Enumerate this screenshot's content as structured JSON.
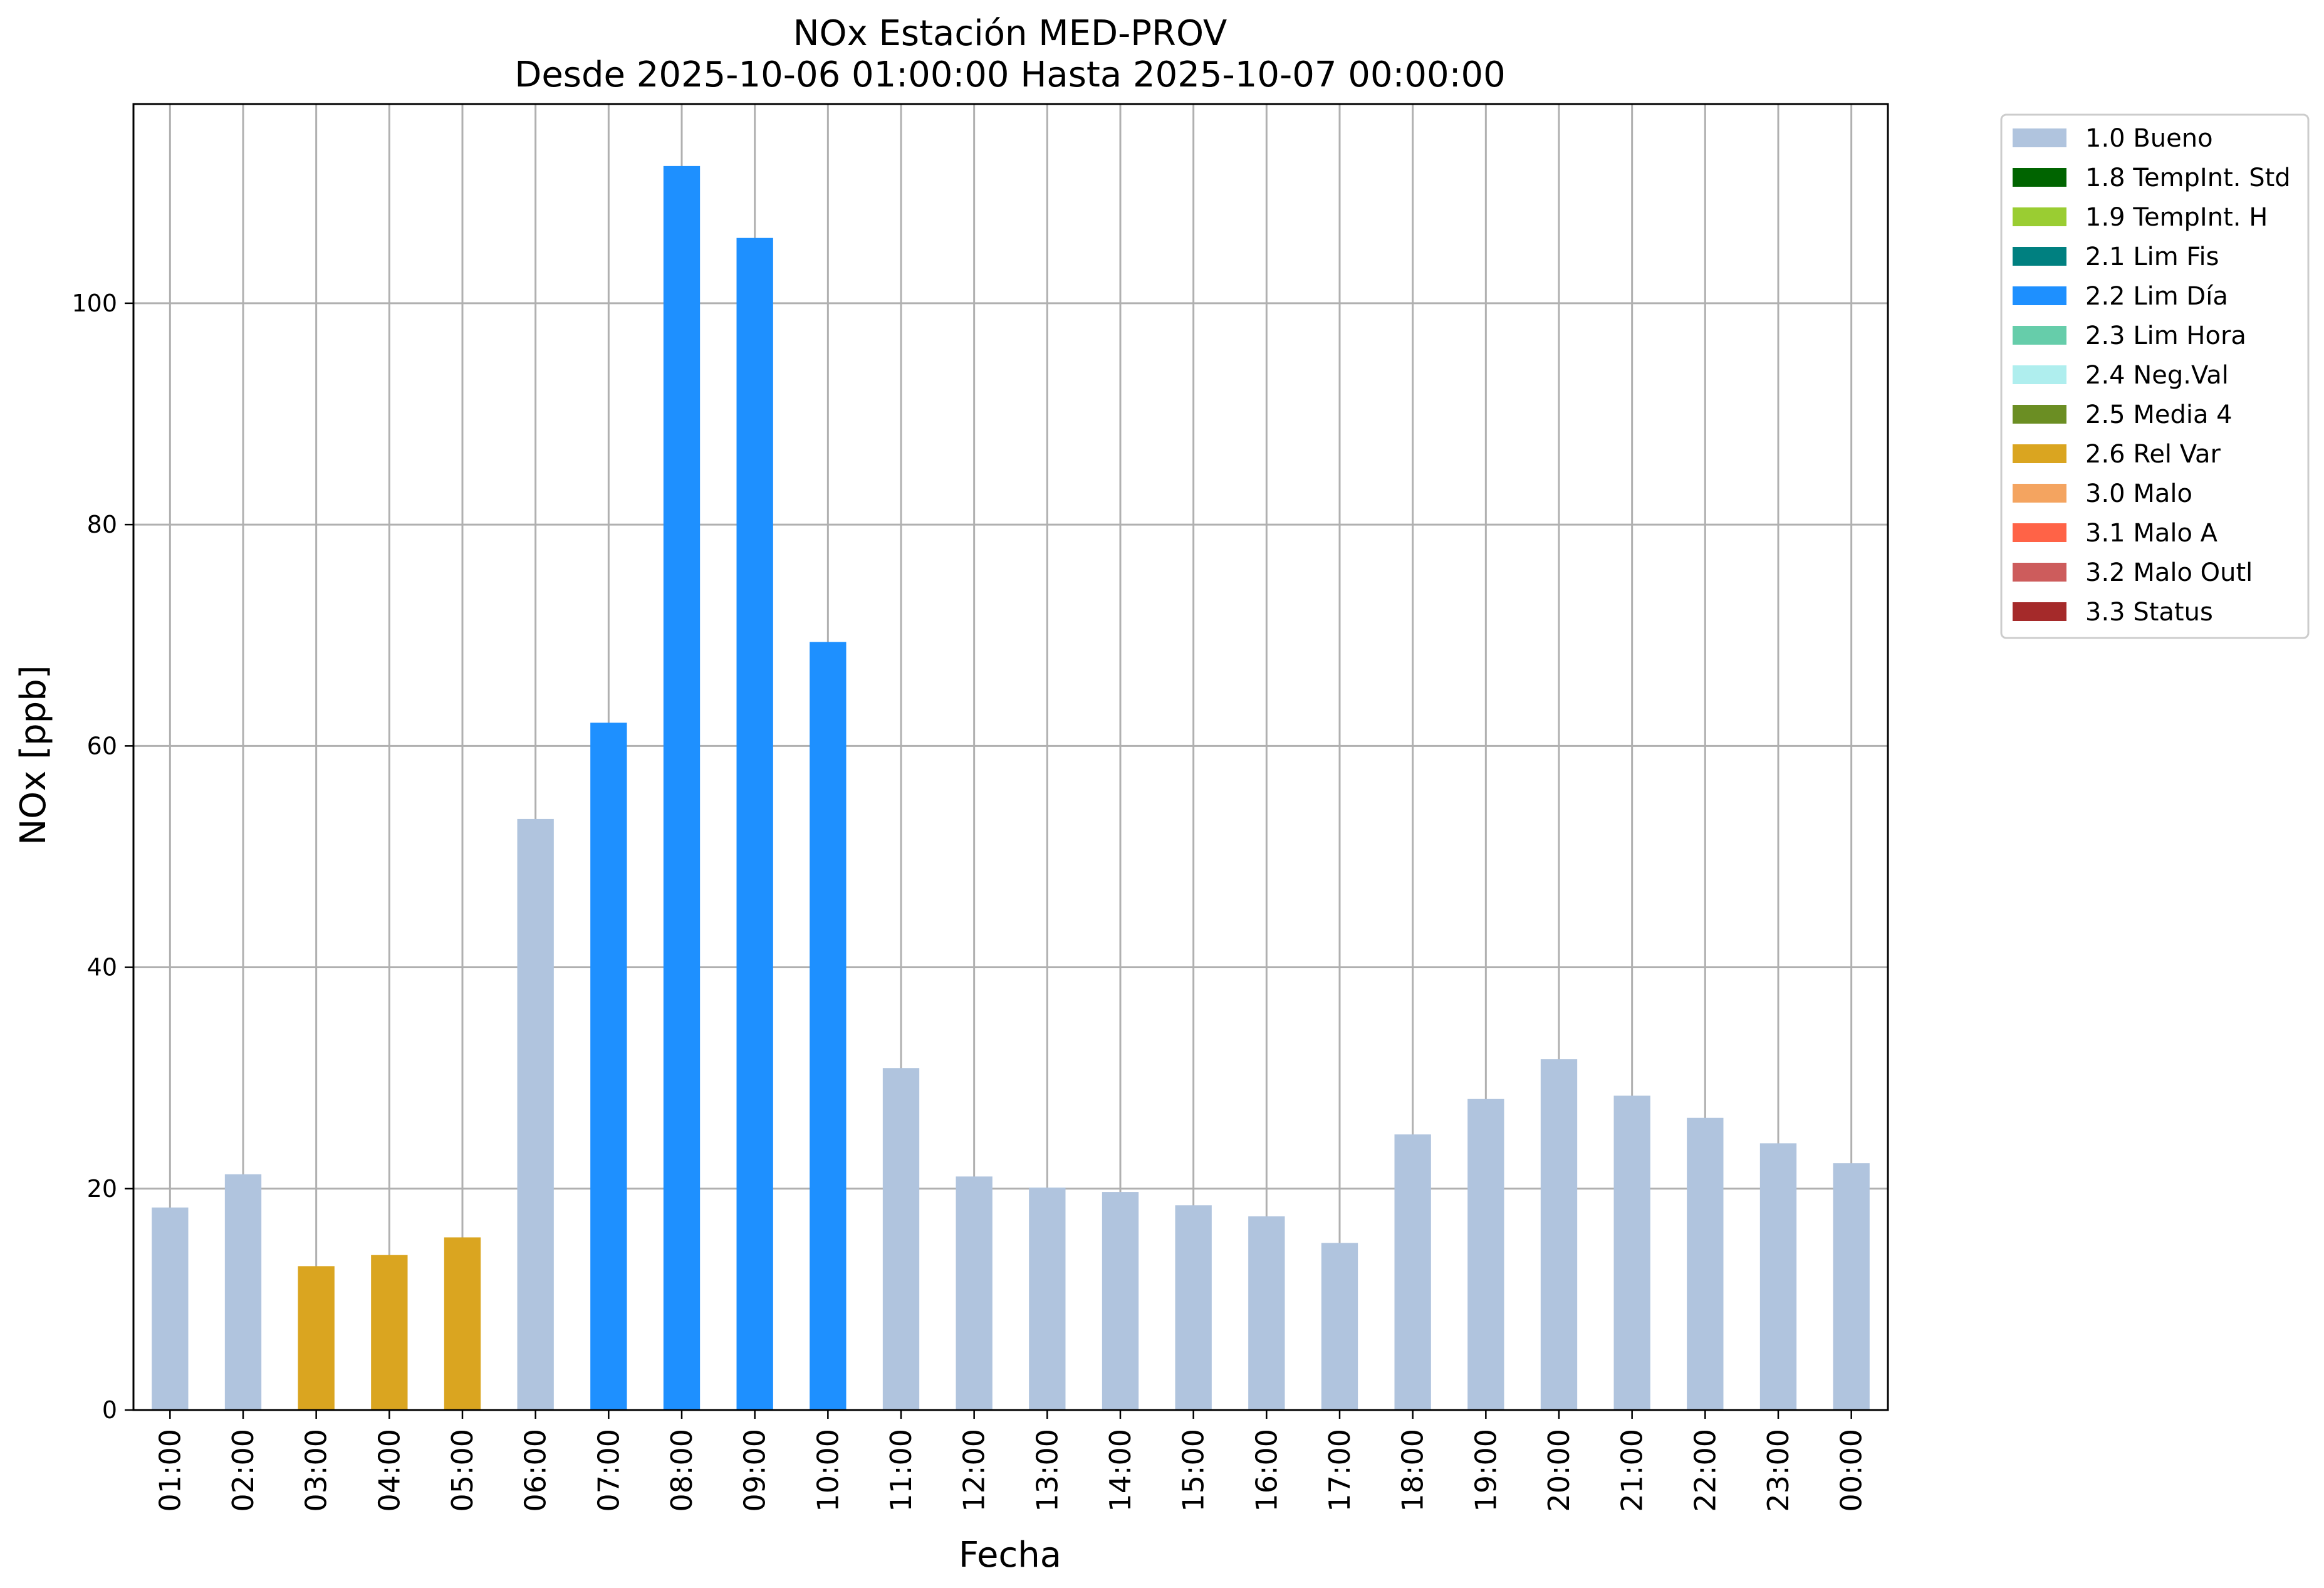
{
  "chart_data": {
    "type": "bar",
    "title": "NOx Estación MED-PROV",
    "subtitle": "Desde 2025-10-06 01:00:00 Hasta 2025-10-07 00:00:00",
    "xlabel": "Fecha",
    "ylabel": "NOx [ppb]",
    "ylim": [
      0,
      118
    ],
    "yticks": [
      0,
      20,
      40,
      60,
      80,
      100
    ],
    "grid": true,
    "legend_position": "outside-top-right",
    "categories": [
      "01:00",
      "02:00",
      "03:00",
      "04:00",
      "05:00",
      "06:00",
      "07:00",
      "08:00",
      "09:00",
      "10:00",
      "11:00",
      "12:00",
      "13:00",
      "14:00",
      "15:00",
      "16:00",
      "17:00",
      "18:00",
      "19:00",
      "20:00",
      "21:00",
      "22:00",
      "23:00",
      "00:00"
    ],
    "values": [
      18.3,
      21.3,
      13.0,
      14.0,
      15.6,
      53.4,
      62.1,
      112.4,
      105.9,
      69.4,
      30.9,
      21.1,
      20.1,
      19.7,
      18.5,
      17.5,
      15.1,
      24.9,
      28.1,
      31.7,
      28.4,
      26.4,
      24.1,
      22.3
    ],
    "flags": [
      "1.0 Bueno",
      "1.0 Bueno",
      "2.6 Rel Var",
      "2.6 Rel Var",
      "2.6 Rel Var",
      "1.0 Bueno",
      "2.2 Lim Día",
      "2.2 Lim Día",
      "2.2 Lim Día",
      "2.2 Lim Día",
      "1.0 Bueno",
      "1.0 Bueno",
      "1.0 Bueno",
      "1.0 Bueno",
      "1.0 Bueno",
      "1.0 Bueno",
      "1.0 Bueno",
      "1.0 Bueno",
      "1.0 Bueno",
      "1.0 Bueno",
      "1.0 Bueno",
      "1.0 Bueno",
      "1.0 Bueno",
      "1.0 Bueno"
    ],
    "legend": [
      {
        "label": "1.0 Bueno",
        "color": "#b0c4de"
      },
      {
        "label": "1.8 TempInt. Std",
        "color": "#006400"
      },
      {
        "label": "1.9 TempInt. H",
        "color": "#9acd32"
      },
      {
        "label": "2.1 Lim Fis",
        "color": "#008080"
      },
      {
        "label": "2.2 Lim Día",
        "color": "#1e90ff"
      },
      {
        "label": "2.3 Lim Hora",
        "color": "#66cdaa"
      },
      {
        "label": "2.4 Neg.Val",
        "color": "#afeeee"
      },
      {
        "label": "2.5 Media 4",
        "color": "#6b8e23"
      },
      {
        "label": "2.6 Rel Var",
        "color": "#daa520"
      },
      {
        "label": "3.0 Malo",
        "color": "#f4a460"
      },
      {
        "label": "3.1 Malo A",
        "color": "#ff6347"
      },
      {
        "label": "3.2 Malo Outl",
        "color": "#cd5c5c"
      },
      {
        "label": "3.3 Status",
        "color": "#a52a2a"
      }
    ]
  }
}
